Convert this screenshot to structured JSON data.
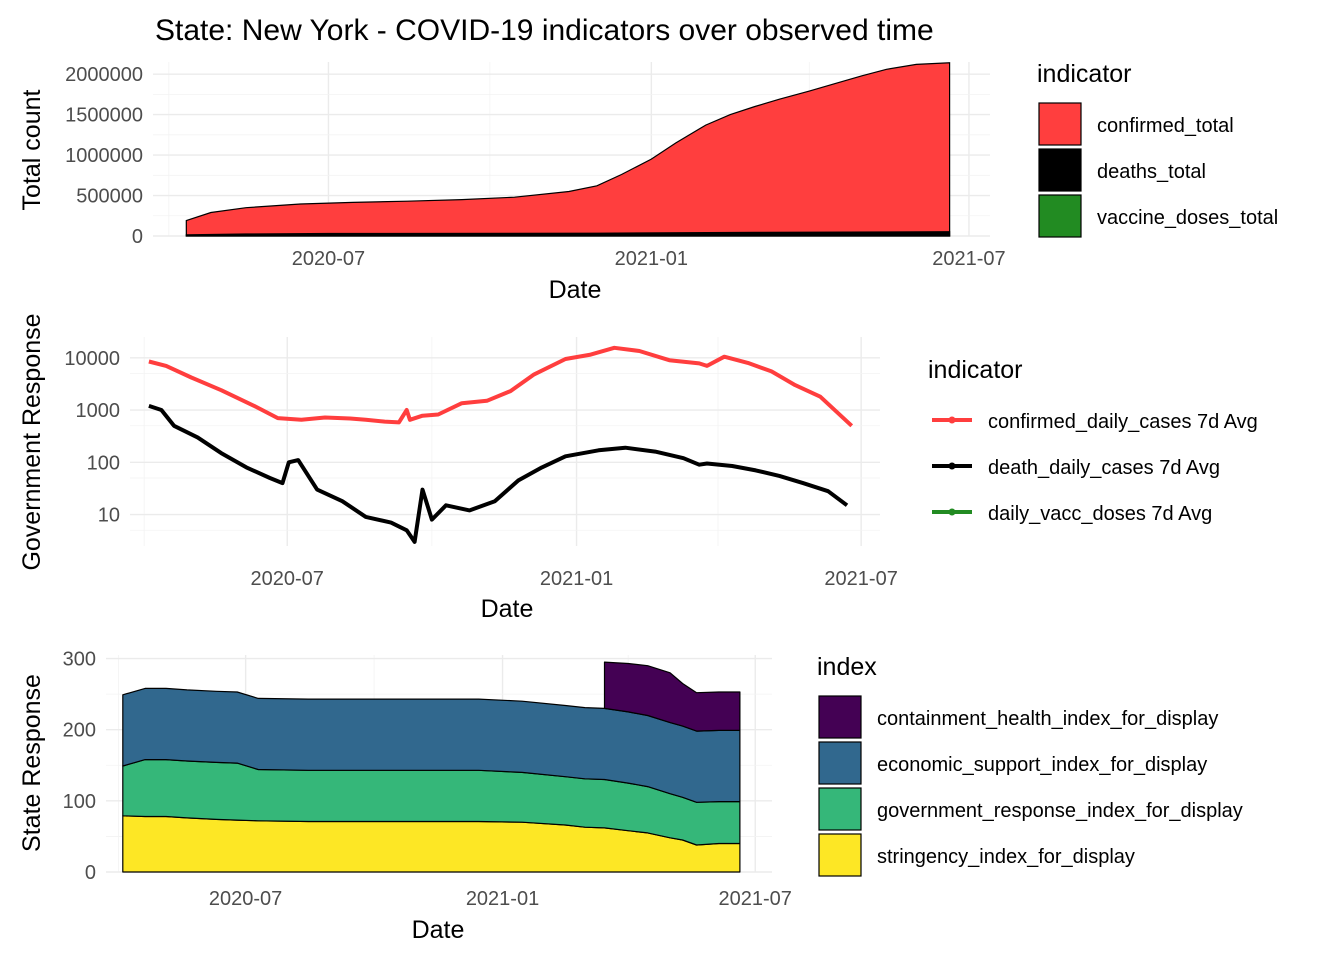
{
  "title": "State: New York - COVID-19 indicators over observed time",
  "chart_data": [
    {
      "type": "area",
      "xlabel": "Date",
      "ylabel": "Total count",
      "x_ticks": [
        "2020-07",
        "2021-01",
        "2021-07"
      ],
      "y_ticks": [
        "0",
        "500000",
        "1000000",
        "1500000",
        "2000000"
      ],
      "ylim": [
        0,
        2150000
      ],
      "xlim": [
        "2020-03-23",
        "2021-07-13"
      ],
      "legend_title": "indicator",
      "colors": {
        "confirmed_total": "#ff3e3e",
        "deaths_total": "#000000",
        "vaccine_doses_total": "#228b22"
      },
      "legend": [
        "confirmed_total",
        "deaths_total",
        "vaccine_doses_total"
      ],
      "series": [
        {
          "name": "confirmed_total",
          "x": [
            "2020-04-11",
            "2020-04-25",
            "2020-05-15",
            "2020-06-15",
            "2020-07-15",
            "2020-08-15",
            "2020-09-15",
            "2020-10-15",
            "2020-11-15",
            "2020-12-01",
            "2020-12-15",
            "2021-01-01",
            "2021-01-15",
            "2021-02-01",
            "2021-02-15",
            "2021-03-01",
            "2021-03-15",
            "2021-04-01",
            "2021-04-15",
            "2021-05-01",
            "2021-05-15",
            "2021-06-01",
            "2021-06-20"
          ],
          "values": [
            190000,
            290000,
            350000,
            395000,
            415000,
            430000,
            450000,
            480000,
            550000,
            620000,
            760000,
            950000,
            1150000,
            1370000,
            1500000,
            1600000,
            1690000,
            1790000,
            1880000,
            1980000,
            2060000,
            2120000,
            2140000
          ]
        },
        {
          "name": "deaths_total",
          "x": [
            "2020-04-11",
            "2020-05-15",
            "2020-07-01",
            "2020-12-01",
            "2021-03-01",
            "2021-06-20"
          ],
          "values": [
            15000,
            25000,
            31000,
            34000,
            45000,
            53000
          ]
        },
        {
          "name": "vaccine_doses_total",
          "x": [],
          "values": []
        }
      ]
    },
    {
      "type": "line",
      "xlabel": "Date",
      "ylabel": "Government Response",
      "x_ticks": [
        "2020-07",
        "2021-01",
        "2021-07"
      ],
      "y_ticks": [
        "10",
        "100",
        "1000",
        "10000"
      ],
      "yscale": "log10",
      "ylim": [
        2.5,
        25000
      ],
      "xlim": [
        "2020-03-23",
        "2021-07-13"
      ],
      "legend_title": "indicator",
      "colors": {
        "confirmed_daily_cases 7d Avg": "#ff3e3e",
        "death_daily_cases 7d Avg": "#000000",
        "daily_vacc_doses 7d Avg": "#228b22"
      },
      "legend": [
        "confirmed_daily_cases 7d Avg",
        "death_daily_cases 7d Avg",
        "daily_vacc_doses 7d Avg"
      ],
      "series": [
        {
          "name": "confirmed_daily_cases 7d Avg",
          "x": [
            "2020-04-04",
            "2020-04-15",
            "2020-05-01",
            "2020-05-20",
            "2020-06-10",
            "2020-06-25",
            "2020-07-10",
            "2020-07-25",
            "2020-08-10",
            "2020-08-20",
            "2020-09-01",
            "2020-09-10",
            "2020-09-15",
            "2020-09-17",
            "2020-09-25",
            "2020-10-05",
            "2020-10-20",
            "2020-11-05",
            "2020-11-20",
            "2020-12-05",
            "2020-12-25",
            "2021-01-10",
            "2021-01-25",
            "2021-02-10",
            "2021-03-01",
            "2021-03-20",
            "2021-03-25",
            "2021-04-05",
            "2021-04-20",
            "2021-05-05",
            "2021-05-20",
            "2021-06-05",
            "2021-06-25"
          ],
          "values": [
            8500,
            7000,
            4200,
            2400,
            1200,
            700,
            650,
            720,
            690,
            650,
            600,
            580,
            1000,
            650,
            780,
            820,
            1350,
            1500,
            2300,
            4800,
            9500,
            11500,
            15500,
            13500,
            9000,
            7800,
            7000,
            10500,
            8000,
            5500,
            3000,
            1800,
            500
          ]
        },
        {
          "name": "death_daily_cases 7d Avg",
          "x": [
            "2020-04-04",
            "2020-04-12",
            "2020-04-20",
            "2020-05-05",
            "2020-05-20",
            "2020-06-05",
            "2020-06-20",
            "2020-06-28",
            "2020-07-02",
            "2020-07-08",
            "2020-07-20",
            "2020-08-05",
            "2020-08-20",
            "2020-09-05",
            "2020-09-15",
            "2020-09-20",
            "2020-09-25",
            "2020-10-01",
            "2020-10-10",
            "2020-10-25",
            "2020-11-10",
            "2020-11-25",
            "2020-12-10",
            "2020-12-25",
            "2021-01-15",
            "2021-02-01",
            "2021-02-20",
            "2021-03-10",
            "2021-03-20",
            "2021-03-25",
            "2021-04-10",
            "2021-04-25",
            "2021-05-10",
            "2021-05-25",
            "2021-06-10",
            "2021-06-22"
          ],
          "values": [
            1200,
            1000,
            500,
            300,
            150,
            80,
            50,
            40,
            100,
            110,
            30,
            18,
            9,
            7,
            5,
            3,
            30,
            8,
            15,
            12,
            18,
            45,
            80,
            130,
            170,
            190,
            160,
            120,
            90,
            95,
            85,
            70,
            55,
            40,
            28,
            15
          ]
        },
        {
          "name": "daily_vacc_doses 7d Avg",
          "x": [],
          "values": []
        }
      ]
    },
    {
      "type": "area",
      "stacked": true,
      "xlabel": "Date",
      "ylabel": "State Response",
      "x_ticks": [
        "2020-07",
        "2021-01",
        "2021-07"
      ],
      "y_ticks": [
        "0",
        "100",
        "200",
        "300"
      ],
      "ylim": [
        0,
        305
      ],
      "xlim": [
        "2020-03-23",
        "2021-07-13"
      ],
      "legend_title": "index",
      "colors": {
        "containment_health_index_for_display": "#440154",
        "economic_support_index_for_display": "#31688e",
        "government_response_index_for_display": "#35b779",
        "stringency_index_for_display": "#fde725"
      },
      "legend": [
        "containment_health_index_for_display",
        "economic_support_index_for_display",
        "government_response_index_for_display",
        "stringency_index_for_display"
      ],
      "x": [
        "2020-04-04",
        "2020-04-20",
        "2020-05-05",
        "2020-05-20",
        "2020-06-10",
        "2020-06-25",
        "2020-07-10",
        "2020-08-15",
        "2020-09-15",
        "2020-10-15",
        "2020-11-15",
        "2020-12-15",
        "2021-01-15",
        "2021-02-15",
        "2021-03-01",
        "2021-03-15",
        "2021-04-01",
        "2021-04-15",
        "2021-05-01",
        "2021-05-10",
        "2021-05-20",
        "2021-06-05",
        "2021-06-20"
      ],
      "series": [
        {
          "name": "stringency_index_for_display",
          "values": [
            79,
            78,
            78,
            76,
            74,
            73,
            72,
            71,
            71,
            71,
            71,
            71,
            70,
            66,
            63,
            62,
            58,
            55,
            48,
            45,
            38,
            40,
            40
          ]
        },
        {
          "name": "government_response_index_for_display",
          "values": [
            70,
            80,
            80,
            80,
            80,
            80,
            72,
            72,
            72,
            72,
            72,
            72,
            70,
            68,
            68,
            68,
            67,
            65,
            62,
            60,
            60,
            59,
            59
          ]
        },
        {
          "name": "economic_support_index_for_display",
          "values": [
            100,
            100,
            100,
            100,
            100,
            100,
            100,
            100,
            100,
            100,
            100,
            100,
            100,
            100,
            100,
            100,
            100,
            100,
            100,
            100,
            100,
            100,
            100
          ]
        },
        {
          "name": "containment_health_index_for_display",
          "values": [
            null,
            null,
            null,
            null,
            null,
            null,
            null,
            null,
            null,
            null,
            null,
            null,
            null,
            null,
            null,
            65,
            68,
            70,
            70,
            60,
            54,
            54,
            54
          ]
        }
      ]
    }
  ]
}
